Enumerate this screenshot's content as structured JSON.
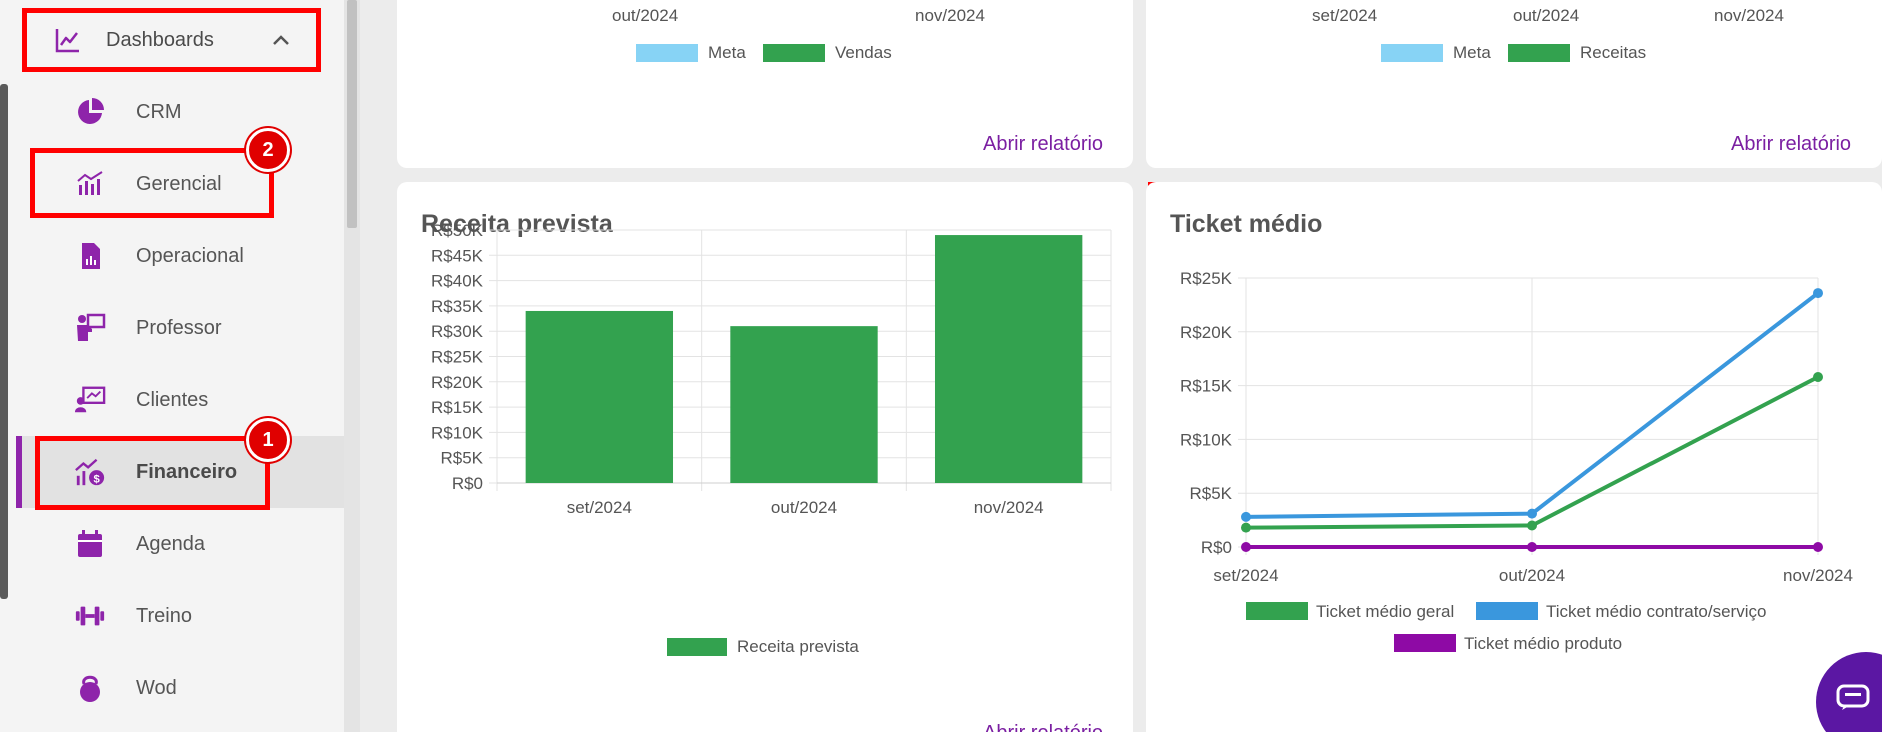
{
  "sidebar": {
    "section_label": "Dashboards",
    "items": [
      {
        "label": "CRM"
      },
      {
        "label": "Gerencial"
      },
      {
        "label": "Operacional"
      },
      {
        "label": "Professor"
      },
      {
        "label": "Clientes"
      },
      {
        "label": "Financeiro"
      },
      {
        "label": "Agenda"
      },
      {
        "label": "Treino"
      },
      {
        "label": "Wod"
      }
    ]
  },
  "annotations": {
    "badge_1": "1",
    "badge_2": "2"
  },
  "top_cards": {
    "left": {
      "x_ticks": [
        "out/2024",
        "nov/2024"
      ],
      "legend": [
        "Meta",
        "Vendas"
      ],
      "link": "Abrir relatório"
    },
    "right": {
      "x_ticks": [
        "set/2024",
        "out/2024",
        "nov/2024"
      ],
      "legend": [
        "Meta",
        "Receitas"
      ],
      "link": "Abrir relatório"
    }
  },
  "receita_card": {
    "title": "Receita prevista",
    "link_partial": "Abrir relatório"
  },
  "ticket_card": {
    "title": "Ticket médio"
  },
  "colors": {
    "accent": "#8e24aa",
    "green": "#33a24f",
    "blue": "#3a97dd",
    "purple": "#8e0aa5",
    "light_blue": "#87d3f5",
    "annotation_red": "#ff0000"
  },
  "chart_data": [
    {
      "type": "bar",
      "title": "Receita prevista",
      "categories": [
        "set/2024",
        "out/2024",
        "nov/2024"
      ],
      "series": [
        {
          "name": "Receita prevista",
          "values": [
            34000,
            31000,
            49000
          ]
        }
      ],
      "y_ticks": [
        "R$0",
        "R$5K",
        "R$10K",
        "R$15K",
        "R$20K",
        "R$25K",
        "R$30K",
        "R$35K",
        "R$40K",
        "R$45K",
        "R$50K"
      ],
      "ylim": [
        0,
        50000
      ],
      "grid": true,
      "legend_position": "bottom"
    },
    {
      "type": "line",
      "title": "Ticket médio",
      "categories": [
        "set/2024",
        "out/2024",
        "nov/2024"
      ],
      "series": [
        {
          "name": "Ticket médio geral",
          "values": [
            1800,
            2000,
            15800
          ]
        },
        {
          "name": "Ticket médio contrato/serviço",
          "values": [
            2800,
            3100,
            23600
          ]
        },
        {
          "name": "Ticket médio produto",
          "values": [
            0,
            0,
            0
          ]
        }
      ],
      "y_ticks": [
        "R$0",
        "R$5K",
        "R$10K",
        "R$15K",
        "R$20K",
        "R$25K"
      ],
      "ylim": [
        0,
        25000
      ],
      "grid": true,
      "legend_position": "bottom"
    }
  ]
}
